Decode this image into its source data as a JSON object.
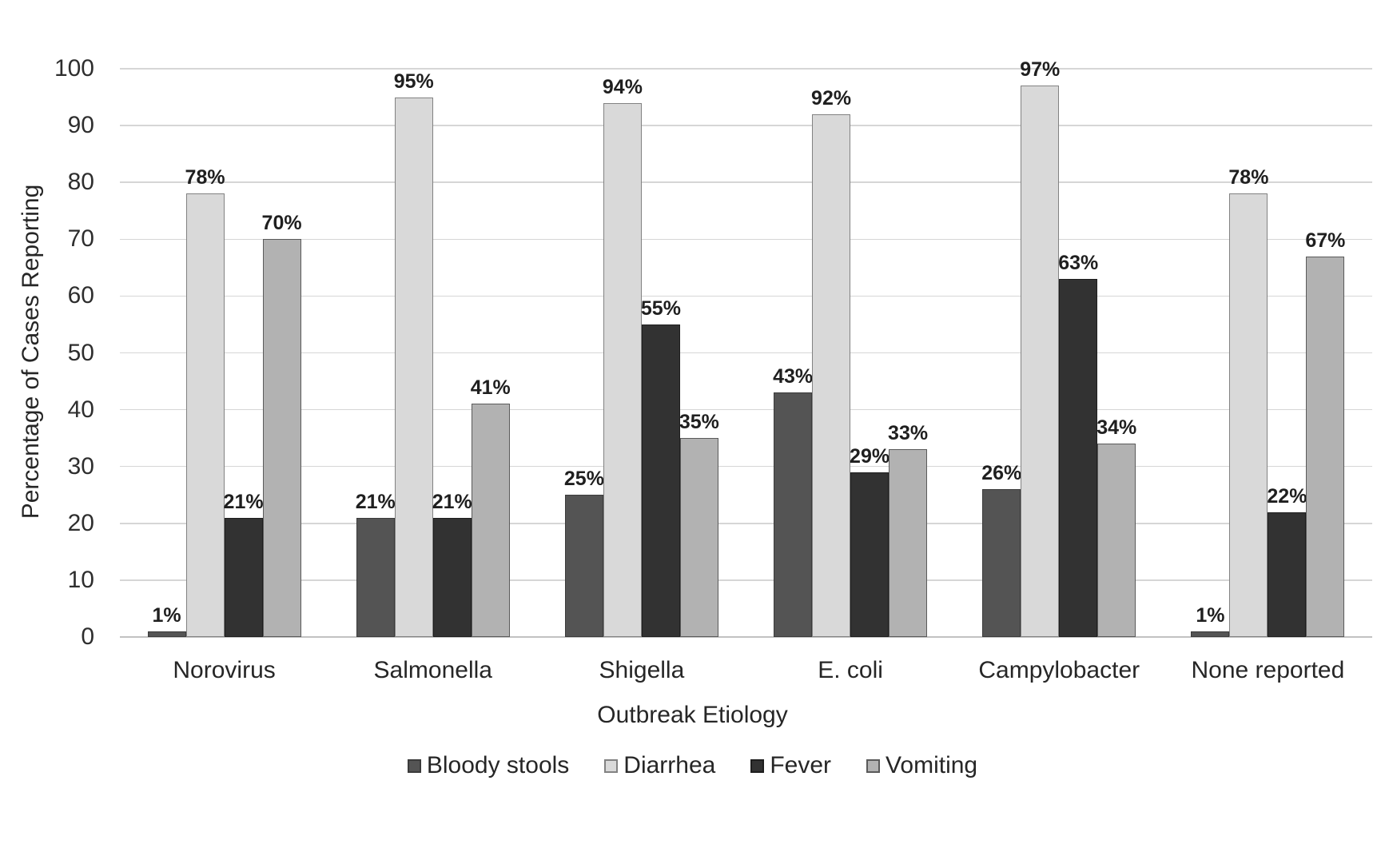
{
  "chart_data": {
    "type": "bar",
    "title": "",
    "xlabel": "Outbreak Etiology",
    "ylabel": "Percentage of Cases Reporting",
    "ylim": [
      0,
      100
    ],
    "y_ticks": [
      0,
      10,
      20,
      30,
      40,
      50,
      60,
      70,
      80,
      90,
      100
    ],
    "grid": "horizontal",
    "legend_position": "bottom",
    "categories": [
      "Norovirus",
      "Salmonella",
      "Shigella",
      "E. coli",
      "Campylobacter",
      "None reported"
    ],
    "series": [
      {
        "name": "Bloody stools",
        "fill": "#545454",
        "border": "#3b3b3b",
        "values": [
          1,
          21,
          25,
          43,
          26,
          1
        ],
        "labels": [
          "1%",
          "21%",
          "25%",
          "43%",
          "26%",
          "1%"
        ]
      },
      {
        "name": "Diarrhea",
        "fill": "#d9d9d9",
        "border": "#828282",
        "values": [
          78,
          95,
          94,
          92,
          97,
          78
        ],
        "labels": [
          "78%",
          "95%",
          "94%",
          "92%",
          "97%",
          "78%"
        ]
      },
      {
        "name": "Fever",
        "fill": "#323232",
        "border": "#1e1e1e",
        "values": [
          21,
          21,
          55,
          29,
          63,
          22
        ],
        "labels": [
          "21%",
          "21%",
          "55%",
          "29%",
          "63%",
          "22%"
        ]
      },
      {
        "name": "Vomiting",
        "fill": "#b2b2b2",
        "border": "#5a5a5a",
        "values": [
          70,
          41,
          35,
          33,
          34,
          67
        ],
        "labels": [
          "70%",
          "41%",
          "35%",
          "33%",
          "34%",
          "67%"
        ]
      }
    ]
  }
}
